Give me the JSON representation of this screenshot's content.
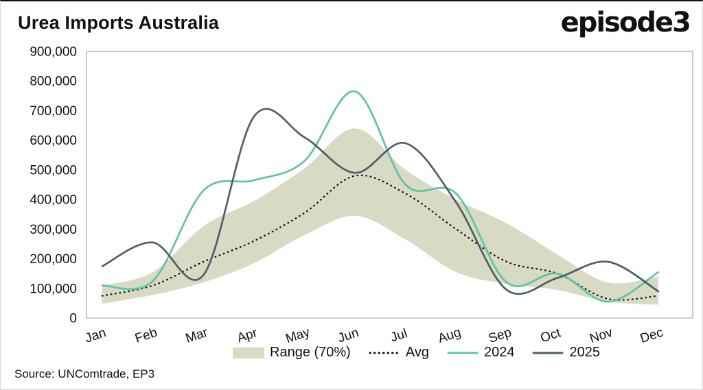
{
  "header": {
    "title": "Urea Imports Australia",
    "logo": "episode3"
  },
  "footer": {
    "source": "Source: UNComtrade, EP3"
  },
  "chart_data": {
    "type": "line",
    "title": "Urea Imports Australia",
    "categories": [
      "Jan",
      "Feb",
      "Mar",
      "Apr",
      "May",
      "Jun",
      "Jul",
      "Aug",
      "Sep",
      "Oct",
      "Nov",
      "Dec"
    ],
    "ylim": [
      0,
      900000
    ],
    "ytick_step": 100000,
    "grid": false,
    "legend_position": "bottom",
    "plot_border_color": "#b8b8b8",
    "band": {
      "name": "Range (70%)",
      "color": "#d9dac3",
      "low": [
        48000,
        78000,
        120000,
        185000,
        280000,
        345000,
        265000,
        155000,
        115000,
        95000,
        55000,
        45000
      ],
      "high": [
        110000,
        155000,
        310000,
        395000,
        505000,
        640000,
        500000,
        400000,
        320000,
        215000,
        120000,
        140000
      ]
    },
    "series": [
      {
        "name": "Avg",
        "style": "dotted",
        "color": "#111111",
        "values": [
          75000,
          110000,
          190000,
          260000,
          355000,
          480000,
          420000,
          300000,
          190000,
          150000,
          65000,
          75000
        ]
      },
      {
        "name": "2024",
        "style": "solid",
        "color": "#5ec4a0",
        "values": [
          110000,
          125000,
          430000,
          465000,
          530000,
          765000,
          450000,
          420000,
          120000,
          150000,
          55000,
          155000
        ]
      },
      {
        "name": "2025",
        "style": "solid",
        "color": "#4a5f69",
        "values": [
          175000,
          255000,
          145000,
          680000,
          610000,
          490000,
          590000,
          390000,
          95000,
          135000,
          190000,
          90000
        ]
      }
    ]
  }
}
